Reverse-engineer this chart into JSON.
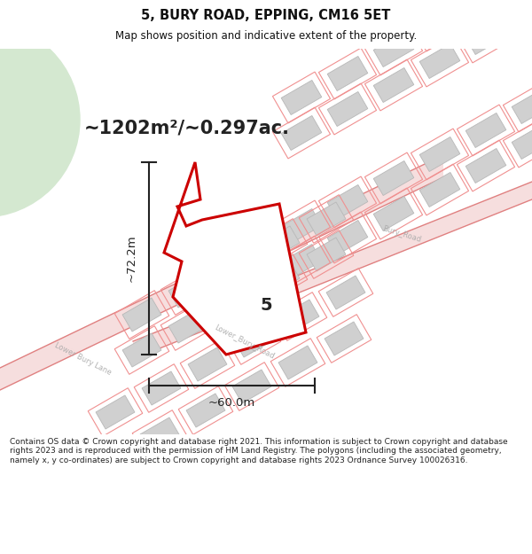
{
  "title": "5, BURY ROAD, EPPING, CM16 5ET",
  "subtitle": "Map shows position and indicative extent of the property.",
  "area_text": "~1202m²/~0.297ac.",
  "dim_width": "~60.0m",
  "dim_height": "~72.2m",
  "property_number": "5",
  "footer": "Contains OS data © Crown copyright and database right 2021. This information is subject to Crown copyright and database rights 2023 and is reproduced with the permission of HM Land Registry. The polygons (including the associated geometry, namely x, y co-ordinates) are subject to Crown copyright and database rights 2023 Ordnance Survey 100026316.",
  "bg_map_color": "#eef2ee",
  "bg_circle_color": "#d4e8d0",
  "road_fill_color": "#f0c8c8",
  "road_line_color": "#e08080",
  "block_color": "#d0d0d0",
  "block_outline_color": "#b8b8b8",
  "plot_line_color": "#f09090",
  "property_fill": "#ffffff",
  "property_outline": "#cc0000",
  "dim_color": "#222222",
  "text_color": "#222222",
  "title_color": "#111111",
  "footer_color": "#222222",
  "white_bg": "#ffffff",
  "road_label_color": "#aaaaaa"
}
